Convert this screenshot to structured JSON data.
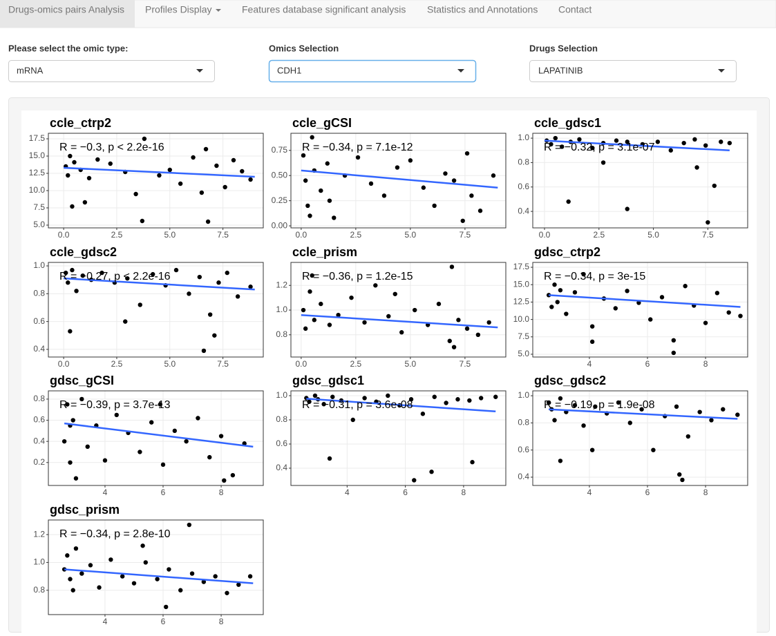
{
  "nav": {
    "tabs": [
      "Drugs-omics pairs Analysis",
      "Profiles Display",
      "Features database significant analysis",
      "Statistics and Annotations",
      "Contact"
    ]
  },
  "controls": [
    {
      "label": "Please select the omic type:",
      "value": "mRNA"
    },
    {
      "label": "Omics Selection",
      "value": "CDH1"
    },
    {
      "label": "Drugs Selection",
      "value": "LAPATINIB"
    }
  ],
  "chart_data": [
    {
      "type": "scatter",
      "title": "ccle_ctrp2",
      "annotation": "R = −0.3, p < 2.2e-16",
      "color": "#000000",
      "x": [
        0.1,
        0.2,
        0.3,
        0.5,
        0.8,
        1.2,
        1.6,
        2.2,
        2.9,
        3.4,
        3.8,
        4.5,
        5.0,
        5.5,
        6.1,
        6.5,
        6.8,
        7.2,
        7.6,
        8.0,
        8.4,
        8.8,
        0.4,
        6.7,
        1.0,
        3.7
      ],
      "values": [
        13.5,
        12.2,
        15.0,
        14.1,
        13.0,
        11.8,
        14.5,
        13.9,
        12.7,
        9.5,
        17.5,
        12.2,
        13.0,
        11.0,
        14.8,
        9.7,
        5.5,
        13.6,
        10.5,
        14.4,
        12.8,
        11.6,
        7.7,
        16.0,
        8.3,
        5.6
      ],
      "fit": {
        "color": "#3366ff",
        "x": [
          0,
          9
        ],
        "values": [
          13.3,
          12.0
        ]
      },
      "xlim": [
        -0.72,
        9.4
      ],
      "ylim": [
        4.6,
        18.3
      ],
      "xticks": [
        {
          "value": 0,
          "label": "0.0"
        },
        2.5,
        {
          "value": 5,
          "label": "5.0"
        },
        7.5
      ],
      "yticks": [
        {
          "value": 5,
          "label": "5.0"
        },
        7.5,
        {
          "value": 10,
          "label": "10.0"
        },
        12.5,
        {
          "value": 15,
          "label": "15.0"
        },
        17.5
      ],
      "grid": true
    },
    {
      "type": "scatter",
      "title": "ccle_gCSI",
      "annotation": "R = −0.34, p = 7.1e-12",
      "color": "#000000",
      "x": [
        0.1,
        0.2,
        0.3,
        0.5,
        0.6,
        0.9,
        1.2,
        1.5,
        2.0,
        2.6,
        3.2,
        3.8,
        4.4,
        5.0,
        5.6,
        6.1,
        6.6,
        7.0,
        7.4,
        7.8,
        8.2,
        8.8,
        0.4,
        7.6,
        1.3
      ],
      "values": [
        0.7,
        0.45,
        0.2,
        0.88,
        0.55,
        0.35,
        0.62,
        0.08,
        0.5,
        0.68,
        0.42,
        0.3,
        0.58,
        0.65,
        0.38,
        0.2,
        0.52,
        0.45,
        0.05,
        0.3,
        0.15,
        0.5,
        0.1,
        0.72,
        0.25
      ],
      "fit": {
        "color": "#3366ff",
        "x": [
          0,
          9
        ],
        "values": [
          0.55,
          0.38
        ]
      },
      "xlim": [
        -0.47,
        9.37
      ],
      "ylim": [
        -0.02,
        0.92
      ],
      "xticks": [
        {
          "value": 0,
          "label": "0.0"
        },
        2.5,
        {
          "value": 5,
          "label": "5.0"
        },
        7.5
      ],
      "yticks": [
        {
          "value": 0,
          "label": "0.00"
        },
        0.25,
        {
          "value": 0.5,
          "label": "0.50"
        },
        0.75
      ],
      "grid": true
    },
    {
      "type": "scatter",
      "title": "ccle_gdsc1",
      "annotation": "R = −0.32, p = 3.1e-07",
      "color": "#000000",
      "x": [
        0.1,
        0.3,
        0.5,
        0.8,
        1.2,
        1.6,
        2.2,
        2.7,
        3.3,
        3.8,
        4.5,
        5.2,
        5.8,
        6.4,
        6.9,
        7.4,
        7.8,
        8.1,
        8.5,
        2.7,
        1.1,
        3.8,
        7.5,
        7.0
      ],
      "values": [
        0.98,
        0.95,
        1.0,
        0.93,
        0.97,
        0.99,
        0.92,
        0.96,
        0.98,
        0.42,
        0.95,
        0.97,
        0.9,
        0.96,
        0.99,
        0.94,
        0.61,
        0.97,
        0.96,
        0.8,
        0.48,
        0.97,
        0.31,
        0.76
      ],
      "fit": {
        "color": "#3366ff",
        "x": [
          0,
          8.5
        ],
        "values": [
          0.98,
          0.9
        ]
      },
      "xlim": [
        -0.54,
        9.33
      ],
      "ylim": [
        0.265,
        1.04
      ],
      "xticks": [
        {
          "value": 0,
          "label": "0.0"
        },
        2.5,
        {
          "value": 5,
          "label": "5.0"
        },
        7.5
      ],
      "yticks": [
        0.4,
        0.6,
        0.8,
        {
          "value": 1,
          "label": "1.0"
        }
      ],
      "grid": true
    },
    {
      "type": "scatter",
      "title": "ccle_gdsc2",
      "annotation": "R = −0.27, p < 2.2e-16",
      "color": "#000000",
      "x": [
        0.1,
        0.2,
        0.4,
        0.6,
        0.9,
        1.3,
        1.8,
        2.4,
        3.0,
        3.6,
        4.2,
        4.8,
        5.3,
        5.9,
        6.4,
        6.9,
        7.3,
        7.7,
        8.2,
        8.8,
        0.3,
        2.9,
        6.6,
        7.1
      ],
      "values": [
        0.95,
        0.88,
        0.97,
        0.82,
        0.93,
        0.9,
        0.95,
        0.88,
        0.91,
        0.72,
        0.94,
        0.86,
        0.97,
        0.8,
        0.92,
        0.65,
        0.88,
        0.95,
        0.78,
        0.85,
        0.53,
        0.6,
        0.39,
        0.5
      ],
      "fit": {
        "color": "#3366ff",
        "x": [
          0,
          9
        ],
        "values": [
          0.91,
          0.83
        ]
      },
      "xlim": [
        -0.72,
        9.4
      ],
      "ylim": [
        0.345,
        1.025
      ],
      "xticks": [
        {
          "value": 0,
          "label": "0.0"
        },
        2.5,
        {
          "value": 5,
          "label": "5.0"
        },
        7.5
      ],
      "yticks": [
        0.4,
        0.6,
        0.8,
        {
          "value": 1,
          "label": "1.0"
        }
      ],
      "grid": true
    },
    {
      "type": "scatter",
      "title": "ccle_prism",
      "annotation": "R = −0.36, p = 1.2e-15",
      "color": "#000000",
      "x": [
        0.1,
        0.2,
        0.4,
        0.6,
        0.9,
        1.3,
        1.7,
        2.3,
        2.9,
        3.4,
        4.0,
        4.6,
        5.2,
        5.8,
        6.3,
        6.8,
        7.2,
        7.6,
        8.1,
        8.6,
        0.5,
        4.3,
        6.9,
        7.0
      ],
      "values": [
        1.0,
        0.85,
        1.15,
        0.92,
        1.05,
        0.88,
        0.96,
        1.1,
        0.9,
        1.2,
        0.95,
        0.82,
        1.0,
        0.88,
        1.05,
        0.75,
        0.92,
        0.85,
        0.8,
        0.9,
        1.28,
        1.13,
        1.35,
        0.7
      ],
      "fit": {
        "color": "#3366ff",
        "x": [
          0,
          9
        ],
        "values": [
          0.96,
          0.86
        ]
      },
      "xlim": [
        -0.47,
        9.37
      ],
      "ylim": [
        0.62,
        1.386
      ],
      "xticks": [
        {
          "value": 0,
          "label": "0.0"
        },
        2.5,
        {
          "value": 5,
          "label": "5.0"
        },
        7.5
      ],
      "yticks": [
        0.8,
        {
          "value": 1,
          "label": "1.0"
        },
        1.2
      ],
      "grid": true
    },
    {
      "type": "scatter",
      "title": "gdsc_ctrp2",
      "annotation": "R = −0.34, p = 3e-15",
      "color": "#000000",
      "x": [
        2.6,
        2.7,
        2.8,
        2.9,
        3.0,
        3.2,
        3.5,
        3.8,
        4.1,
        4.5,
        4.9,
        5.3,
        5.7,
        6.1,
        6.5,
        6.9,
        7.3,
        7.6,
        8.0,
        8.4,
        8.8,
        9.2,
        4.1,
        6.9
      ],
      "values": [
        13.5,
        11.8,
        15.0,
        12.5,
        14.2,
        10.8,
        13.9,
        16.5,
        9.0,
        13.0,
        11.6,
        14.1,
        12.4,
        10.0,
        13.2,
        5.2,
        14.8,
        12.0,
        9.5,
        13.8,
        11.0,
        10.5,
        6.8,
        7.0
      ],
      "fit": {
        "color": "#3366ff",
        "x": [
          2.6,
          9.2
        ],
        "values": [
          13.5,
          11.8
        ]
      },
      "xlim": [
        2.05,
        9.45
      ],
      "ylim": [
        4.6,
        18.2
      ],
      "xticks": [
        4,
        6,
        8
      ],
      "yticks": [
        {
          "value": 5,
          "label": "5.0"
        },
        7.5,
        {
          "value": 10,
          "label": "10.0"
        },
        12.5,
        {
          "value": 15,
          "label": "15.0"
        },
        17.5
      ],
      "grid": true
    },
    {
      "type": "scatter",
      "title": "gdsc_gCSI",
      "annotation": "R = −0.39, p = 3.7e-13",
      "color": "#000000",
      "x": [
        2.6,
        2.7,
        2.8,
        2.9,
        3.0,
        3.2,
        3.4,
        3.7,
        4.0,
        4.4,
        4.8,
        5.2,
        5.6,
        6.0,
        6.4,
        6.8,
        7.2,
        7.6,
        8.0,
        8.4,
        8.8,
        8.1,
        2.8,
        5.9
      ],
      "values": [
        0.4,
        0.75,
        0.2,
        0.6,
        0.05,
        0.8,
        0.35,
        0.55,
        0.22,
        0.65,
        0.48,
        0.3,
        0.58,
        0.18,
        0.5,
        0.4,
        0.62,
        0.25,
        0.45,
        0.08,
        0.38,
        0.03,
        0.55,
        0.75
      ],
      "fit": {
        "color": "#3366ff",
        "x": [
          2.6,
          9.1
        ],
        "values": [
          0.57,
          0.35
        ]
      },
      "xlim": [
        2.05,
        9.45
      ],
      "ylim": [
        -0.017,
        0.878
      ],
      "xticks": [
        4,
        6,
        8
      ],
      "yticks": [
        0.2,
        0.4,
        0.6,
        0.8
      ],
      "grid": true
    },
    {
      "type": "scatter",
      "title": "gdsc_gdsc1",
      "annotation": "R = −0.31, p = 3.6e-08",
      "color": "#000000",
      "x": [
        2.6,
        2.7,
        2.9,
        3.0,
        3.2,
        3.5,
        3.8,
        4.2,
        4.6,
        5.0,
        5.4,
        5.8,
        6.2,
        6.6,
        7.0,
        7.4,
        7.8,
        8.2,
        8.6,
        9.1,
        3.4,
        6.3,
        6.9,
        8.3
      ],
      "values": [
        0.98,
        0.95,
        1.0,
        0.97,
        0.93,
        0.99,
        0.96,
        0.8,
        0.98,
        0.95,
        1.0,
        0.92,
        0.97,
        0.85,
        0.99,
        0.94,
        0.97,
        0.96,
        0.98,
        0.99,
        0.48,
        0.3,
        0.37,
        0.45
      ],
      "fit": {
        "color": "#3366ff",
        "x": [
          2.6,
          9.1
        ],
        "values": [
          0.975,
          0.87
        ]
      },
      "xlim": [
        2.07,
        9.45
      ],
      "ylim": [
        0.257,
        1.04
      ],
      "xticks": [
        4,
        6,
        8
      ],
      "yticks": [
        0.4,
        0.6,
        0.8,
        {
          "value": 1,
          "label": "1.0"
        }
      ],
      "grid": true
    },
    {
      "type": "scatter",
      "title": "gdsc_gdsc2",
      "annotation": "R = −0.19, p = 1.9e-08",
      "color": "#000000",
      "x": [
        2.6,
        2.7,
        2.8,
        3.0,
        3.2,
        3.5,
        3.8,
        4.2,
        4.6,
        5.0,
        5.4,
        5.8,
        6.2,
        6.6,
        7.0,
        7.4,
        7.8,
        8.2,
        8.6,
        9.1,
        3.0,
        7.1,
        7.2,
        4.1
      ],
      "values": [
        0.95,
        0.9,
        0.82,
        0.98,
        0.88,
        0.93,
        0.78,
        0.92,
        0.87,
        0.95,
        0.8,
        0.9,
        0.6,
        0.85,
        0.92,
        0.7,
        0.88,
        0.82,
        0.9,
        0.86,
        0.52,
        0.42,
        0.38,
        0.6
      ],
      "fit": {
        "color": "#3366ff",
        "x": [
          2.6,
          9.1
        ],
        "values": [
          0.9,
          0.83
        ]
      },
      "xlim": [
        2.05,
        9.45
      ],
      "ylim": [
        0.339,
        1.036
      ],
      "xticks": [
        4,
        6,
        8
      ],
      "yticks": [
        0.4,
        0.6,
        0.8,
        {
          "value": 1,
          "label": "1.0"
        }
      ],
      "grid": true
    },
    {
      "type": "scatter",
      "title": "gdsc_prism",
      "annotation": "R = −0.34, p = 2.8e-10",
      "color": "#000000",
      "x": [
        2.6,
        2.7,
        2.8,
        3.0,
        3.2,
        3.5,
        3.8,
        4.2,
        4.6,
        5.0,
        5.4,
        5.8,
        6.2,
        6.6,
        7.0,
        7.4,
        7.8,
        8.2,
        8.6,
        9.0,
        6.1,
        6.9,
        2.9,
        5.3
      ],
      "values": [
        0.95,
        1.05,
        0.88,
        1.1,
        0.92,
        0.98,
        0.82,
        1.02,
        0.9,
        0.85,
        1.0,
        0.88,
        0.95,
        0.8,
        0.92,
        0.86,
        0.9,
        0.78,
        0.84,
        0.9,
        0.68,
        1.27,
        0.8,
        1.12
      ],
      "fit": {
        "color": "#3366ff",
        "x": [
          2.6,
          9.1
        ],
        "values": [
          0.95,
          0.85
        ]
      },
      "xlim": [
        2.05,
        9.45
      ],
      "ylim": [
        0.625,
        1.305
      ],
      "xticks": [
        4,
        6,
        8
      ],
      "yticks": [
        0.8,
        {
          "value": 1,
          "label": "1.0"
        },
        1.2
      ],
      "grid": true
    }
  ]
}
